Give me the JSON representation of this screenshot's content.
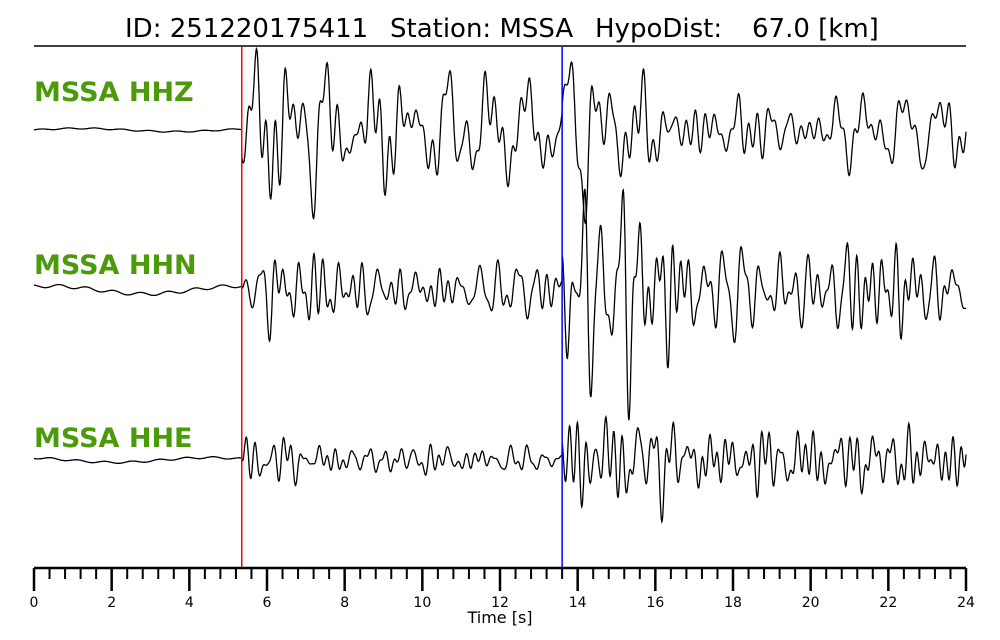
{
  "header": {
    "id_label": "ID: 251220175411",
    "station_label": "Station: MSSA",
    "dist_label": "HypoDist:",
    "dist_value": "67.0 [km]"
  },
  "chart_data": {
    "type": "line",
    "xlabel": "Time [s]",
    "xlim": [
      0,
      24
    ],
    "x_ticks": [
      0,
      2,
      4,
      6,
      8,
      10,
      12,
      14,
      16,
      18,
      20,
      22,
      24
    ],
    "x_minor_step": 0.4,
    "p_pick_time": 5.35,
    "s_pick_time": 13.6,
    "colors": {
      "trace": "#000000",
      "p_pick": "#ff0000",
      "s_pick": "#0000ff",
      "label": "#4a9a0a"
    },
    "channels": [
      {
        "name": "MSSA HHZ",
        "noise_amp": 0.02,
        "p_amp": 0.9,
        "s_amp": 0.75,
        "seed": 11
      },
      {
        "name": "MSSA HHN",
        "noise_amp": 0.05,
        "p_amp": 0.45,
        "s_amp": 1.0,
        "seed": 23
      },
      {
        "name": "MSSA HHE",
        "noise_amp": 0.03,
        "p_amp": 0.3,
        "s_amp": 0.85,
        "seed": 37
      }
    ]
  }
}
